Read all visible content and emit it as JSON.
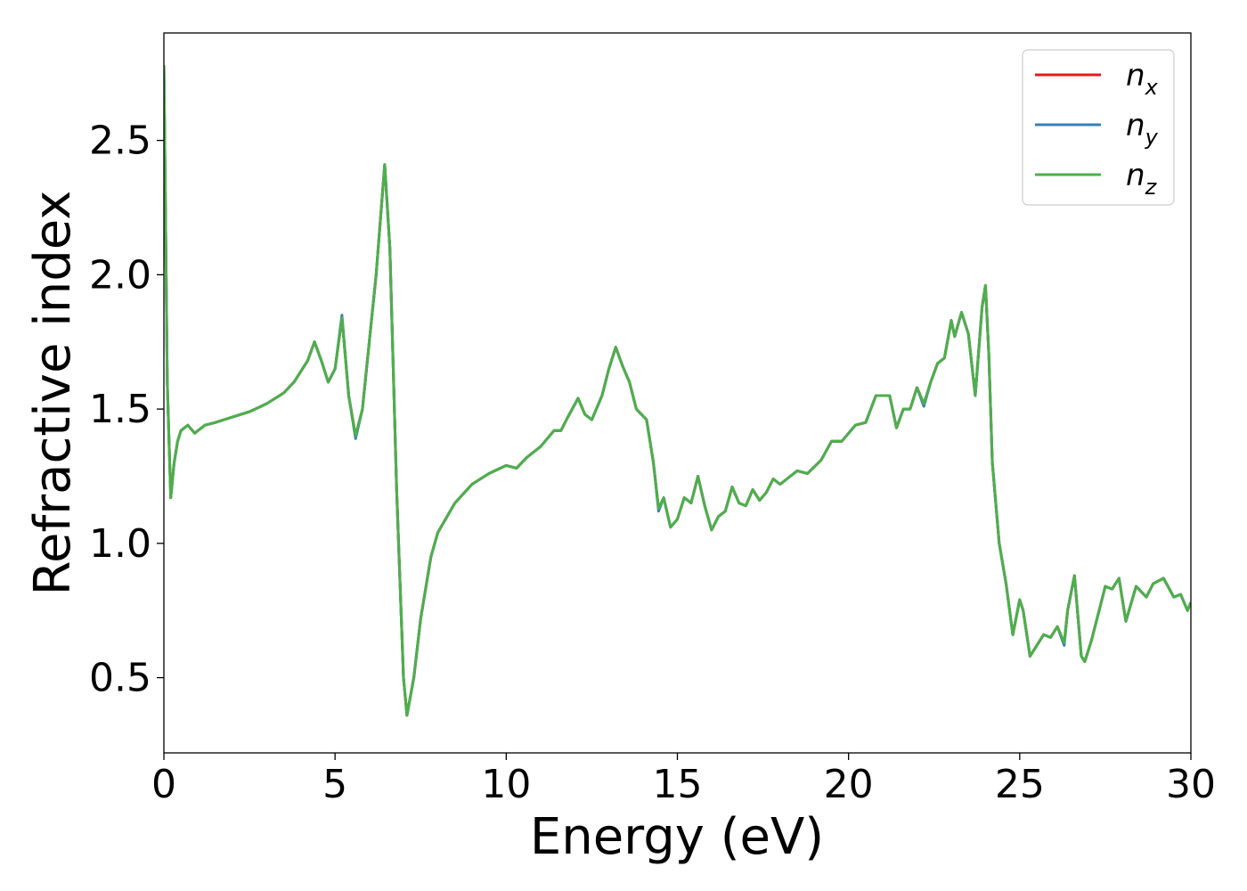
{
  "chart_data": {
    "type": "line",
    "title": "",
    "xlabel": "Energy (eV)",
    "ylabel": "Refractive index",
    "xlim": [
      0,
      30
    ],
    "ylim": [
      0.22,
      2.9
    ],
    "xticks": [
      0,
      5,
      10,
      15,
      20,
      25,
      30
    ],
    "xtick_labels": [
      "0",
      "5",
      "10",
      "15",
      "20",
      "25",
      "30"
    ],
    "yticks": [
      0.5,
      1.0,
      1.5,
      2.0,
      2.5
    ],
    "ytick_labels": [
      "0.5",
      "1.0",
      "1.5",
      "2.0",
      "2.5"
    ],
    "grid": false,
    "legend_position": "top-right",
    "legend": [
      {
        "base": "n",
        "sub": "x",
        "color": "#e41a1c"
      },
      {
        "base": "n",
        "sub": "y",
        "color": "#377eb8"
      },
      {
        "base": "n",
        "sub": "z",
        "color": "#4daf4a"
      }
    ],
    "x": [
      0.0,
      0.05,
      0.1,
      0.2,
      0.3,
      0.4,
      0.5,
      0.7,
      0.9,
      1.0,
      1.2,
      1.5,
      2.0,
      2.5,
      3.0,
      3.5,
      3.8,
      4.0,
      4.2,
      4.4,
      4.6,
      4.8,
      5.0,
      5.2,
      5.4,
      5.6,
      5.8,
      6.0,
      6.2,
      6.45,
      6.6,
      6.8,
      7.0,
      7.1,
      7.3,
      7.5,
      7.8,
      8.0,
      8.5,
      9.0,
      9.5,
      10.0,
      10.3,
      10.6,
      11.0,
      11.4,
      11.6,
      11.8,
      12.1,
      12.3,
      12.5,
      12.8,
      13.0,
      13.2,
      13.4,
      13.6,
      13.8,
      14.1,
      14.3,
      14.45,
      14.6,
      14.8,
      15.0,
      15.2,
      15.4,
      15.6,
      15.8,
      16.0,
      16.2,
      16.4,
      16.6,
      16.8,
      17.0,
      17.2,
      17.4,
      17.6,
      17.8,
      18.0,
      18.2,
      18.5,
      18.8,
      19.2,
      19.5,
      19.8,
      20.2,
      20.5,
      20.8,
      21.0,
      21.2,
      21.4,
      21.6,
      21.8,
      22.0,
      22.2,
      22.4,
      22.6,
      22.8,
      23.0,
      23.1,
      23.3,
      23.5,
      23.7,
      23.9,
      24.0,
      24.1,
      24.2,
      24.4,
      24.6,
      24.8,
      25.0,
      25.1,
      25.3,
      25.5,
      25.7,
      25.9,
      26.1,
      26.3,
      26.4,
      26.6,
      26.8,
      26.9,
      27.1,
      27.3,
      27.5,
      27.7,
      27.9,
      28.1,
      28.4,
      28.7,
      28.9,
      29.2,
      29.5,
      29.7,
      29.9,
      30.0
    ],
    "series": [
      {
        "name": "n_x",
        "color": "#e41a1c",
        "values": [
          2.78,
          2.2,
          1.6,
          1.17,
          1.3,
          1.38,
          1.42,
          1.44,
          1.41,
          1.42,
          1.44,
          1.45,
          1.47,
          1.49,
          1.52,
          1.56,
          1.6,
          1.64,
          1.68,
          1.75,
          1.68,
          1.6,
          1.65,
          1.84,
          1.55,
          1.4,
          1.5,
          1.75,
          2.0,
          2.41,
          2.1,
          1.2,
          0.5,
          0.36,
          0.5,
          0.72,
          0.95,
          1.04,
          1.15,
          1.22,
          1.26,
          1.29,
          1.28,
          1.32,
          1.36,
          1.42,
          1.42,
          1.47,
          1.54,
          1.48,
          1.46,
          1.55,
          1.65,
          1.73,
          1.66,
          1.6,
          1.5,
          1.46,
          1.3,
          1.13,
          1.17,
          1.06,
          1.09,
          1.17,
          1.15,
          1.25,
          1.14,
          1.05,
          1.1,
          1.12,
          1.21,
          1.15,
          1.14,
          1.2,
          1.16,
          1.19,
          1.24,
          1.22,
          1.24,
          1.27,
          1.26,
          1.31,
          1.38,
          1.38,
          1.44,
          1.45,
          1.55,
          1.55,
          1.55,
          1.43,
          1.5,
          1.5,
          1.58,
          1.52,
          1.6,
          1.67,
          1.69,
          1.83,
          1.77,
          1.86,
          1.78,
          1.55,
          1.88,
          1.96,
          1.7,
          1.3,
          1.0,
          0.85,
          0.66,
          0.79,
          0.75,
          0.58,
          0.62,
          0.66,
          0.65,
          0.69,
          0.63,
          0.75,
          0.88,
          0.58,
          0.56,
          0.64,
          0.74,
          0.84,
          0.83,
          0.87,
          0.71,
          0.84,
          0.8,
          0.85,
          0.87,
          0.8,
          0.81,
          0.75,
          0.78
        ]
      },
      {
        "name": "n_y",
        "color": "#377eb8",
        "values": [
          2.78,
          2.2,
          1.6,
          1.17,
          1.3,
          1.38,
          1.42,
          1.44,
          1.41,
          1.42,
          1.44,
          1.45,
          1.47,
          1.49,
          1.52,
          1.56,
          1.6,
          1.64,
          1.68,
          1.75,
          1.68,
          1.6,
          1.65,
          1.85,
          1.55,
          1.39,
          1.5,
          1.75,
          2.0,
          2.41,
          2.1,
          1.2,
          0.5,
          0.36,
          0.5,
          0.72,
          0.95,
          1.04,
          1.15,
          1.22,
          1.26,
          1.29,
          1.28,
          1.32,
          1.36,
          1.42,
          1.42,
          1.47,
          1.54,
          1.48,
          1.46,
          1.55,
          1.65,
          1.73,
          1.66,
          1.6,
          1.5,
          1.46,
          1.3,
          1.12,
          1.17,
          1.06,
          1.09,
          1.17,
          1.15,
          1.25,
          1.14,
          1.05,
          1.1,
          1.12,
          1.21,
          1.15,
          1.14,
          1.2,
          1.16,
          1.19,
          1.24,
          1.22,
          1.24,
          1.27,
          1.26,
          1.31,
          1.38,
          1.38,
          1.44,
          1.45,
          1.55,
          1.55,
          1.55,
          1.43,
          1.5,
          1.5,
          1.58,
          1.51,
          1.6,
          1.67,
          1.69,
          1.83,
          1.77,
          1.86,
          1.78,
          1.55,
          1.88,
          1.96,
          1.7,
          1.3,
          1.0,
          0.85,
          0.66,
          0.79,
          0.75,
          0.58,
          0.62,
          0.66,
          0.65,
          0.69,
          0.62,
          0.75,
          0.88,
          0.58,
          0.56,
          0.64,
          0.74,
          0.84,
          0.83,
          0.87,
          0.71,
          0.84,
          0.8,
          0.85,
          0.87,
          0.8,
          0.81,
          0.75,
          0.78
        ]
      },
      {
        "name": "n_z",
        "color": "#4daf4a",
        "values": [
          2.78,
          2.2,
          1.6,
          1.17,
          1.3,
          1.38,
          1.42,
          1.44,
          1.41,
          1.42,
          1.44,
          1.45,
          1.47,
          1.49,
          1.52,
          1.56,
          1.6,
          1.64,
          1.68,
          1.75,
          1.68,
          1.6,
          1.65,
          1.84,
          1.55,
          1.4,
          1.5,
          1.75,
          2.0,
          2.41,
          2.1,
          1.2,
          0.5,
          0.36,
          0.5,
          0.72,
          0.95,
          1.04,
          1.15,
          1.22,
          1.26,
          1.29,
          1.28,
          1.32,
          1.36,
          1.42,
          1.42,
          1.47,
          1.54,
          1.48,
          1.46,
          1.55,
          1.65,
          1.73,
          1.66,
          1.6,
          1.5,
          1.46,
          1.3,
          1.13,
          1.17,
          1.06,
          1.09,
          1.17,
          1.15,
          1.25,
          1.14,
          1.05,
          1.1,
          1.12,
          1.21,
          1.15,
          1.14,
          1.2,
          1.16,
          1.19,
          1.24,
          1.22,
          1.24,
          1.27,
          1.26,
          1.31,
          1.38,
          1.38,
          1.44,
          1.45,
          1.55,
          1.55,
          1.55,
          1.43,
          1.5,
          1.5,
          1.58,
          1.52,
          1.6,
          1.67,
          1.69,
          1.83,
          1.77,
          1.86,
          1.78,
          1.55,
          1.88,
          1.96,
          1.7,
          1.3,
          1.0,
          0.85,
          0.66,
          0.79,
          0.75,
          0.58,
          0.62,
          0.66,
          0.65,
          0.69,
          0.63,
          0.75,
          0.88,
          0.58,
          0.56,
          0.64,
          0.74,
          0.84,
          0.83,
          0.87,
          0.71,
          0.84,
          0.8,
          0.85,
          0.87,
          0.8,
          0.81,
          0.75,
          0.78
        ]
      }
    ]
  }
}
